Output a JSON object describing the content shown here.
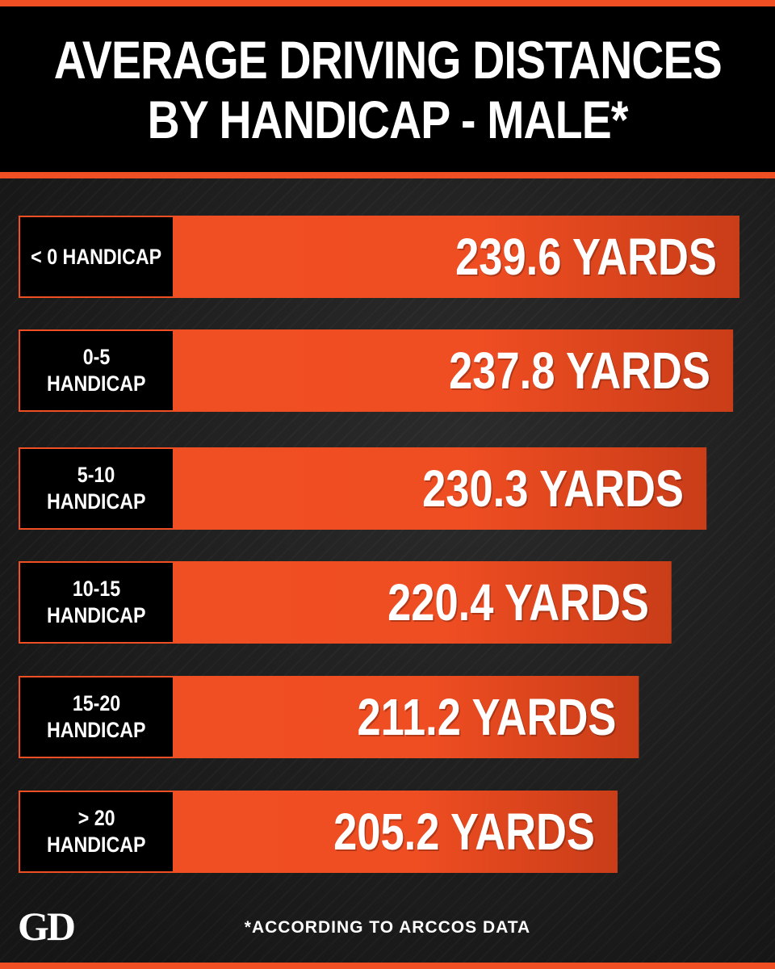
{
  "header": {
    "title_line1": "AVERAGE DRIVING DISTANCES",
    "title_line2": "BY HANDICAP - MALE*"
  },
  "chart_data": {
    "type": "bar",
    "orientation": "horizontal",
    "categories": [
      [
        "< 0 HANDICAP"
      ],
      [
        "0-5",
        "HANDICAP"
      ],
      [
        "5-10",
        "HANDICAP"
      ],
      [
        "10-15",
        "HANDICAP"
      ],
      [
        "15-20",
        "HANDICAP"
      ],
      [
        "> 20",
        "HANDICAP"
      ]
    ],
    "values": [
      239.6,
      237.8,
      230.3,
      220.4,
      211.2,
      205.2
    ],
    "value_labels": [
      "239.6 YARDS",
      "237.8 YARDS",
      "230.3 YARDS",
      "220.4 YARDS",
      "211.2 YARDS",
      "205.2 YARDS"
    ],
    "unit": "YARDS",
    "grid": false,
    "legend": "none"
  },
  "colors": {
    "accent": "#f04e23",
    "bar_dark": "#c93d18",
    "background": "#1f1f1f",
    "header_bg": "#000000",
    "text": "#ffffff"
  },
  "footer": {
    "logo": "GD",
    "footnote": "*ACCORDING TO ARCCOS DATA"
  }
}
